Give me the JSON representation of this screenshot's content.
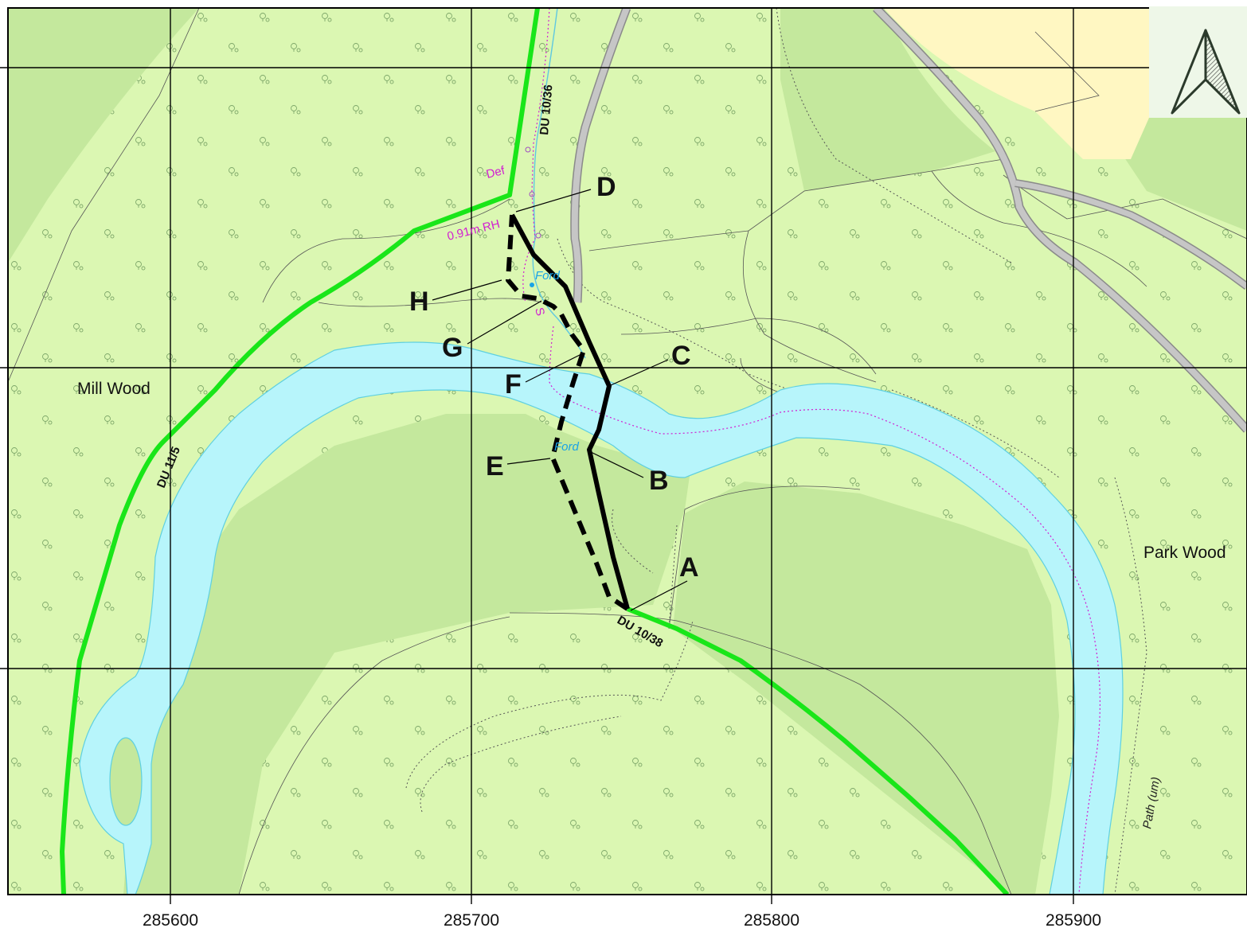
{
  "map": {
    "places": {
      "mill_wood": "Mill Wood",
      "park_wood": "Park Wood"
    },
    "routes": {
      "du_11_5": "DU 11/5",
      "du_10_36": "DU 10/36",
      "du_10_38": "DU 10/38"
    },
    "annotations": {
      "def": "Def",
      "gate": "0.91m RH",
      "ford_upper": "Ford",
      "ford_lower": "Ford",
      "stile": "S",
      "path_um": "Path (um)"
    },
    "points": [
      "A",
      "B",
      "C",
      "D",
      "E",
      "F",
      "G",
      "H"
    ],
    "x_ticks": [
      "285600",
      "285700",
      "285800",
      "285900"
    ],
    "colors": {
      "woodland_light": "#dbf7b2",
      "woodland_dark": "#c4e89d",
      "field_yellow": "#fff7c2",
      "river": "#b7f5fb",
      "river_edge": "#5fd0e0",
      "right_of_way": "#19e619",
      "path_line": "#000000",
      "road": "#c6c6c6",
      "grid": "#000000",
      "boundary_pink": "#d11fd1"
    },
    "north_arrow": "north-arrow-icon"
  }
}
